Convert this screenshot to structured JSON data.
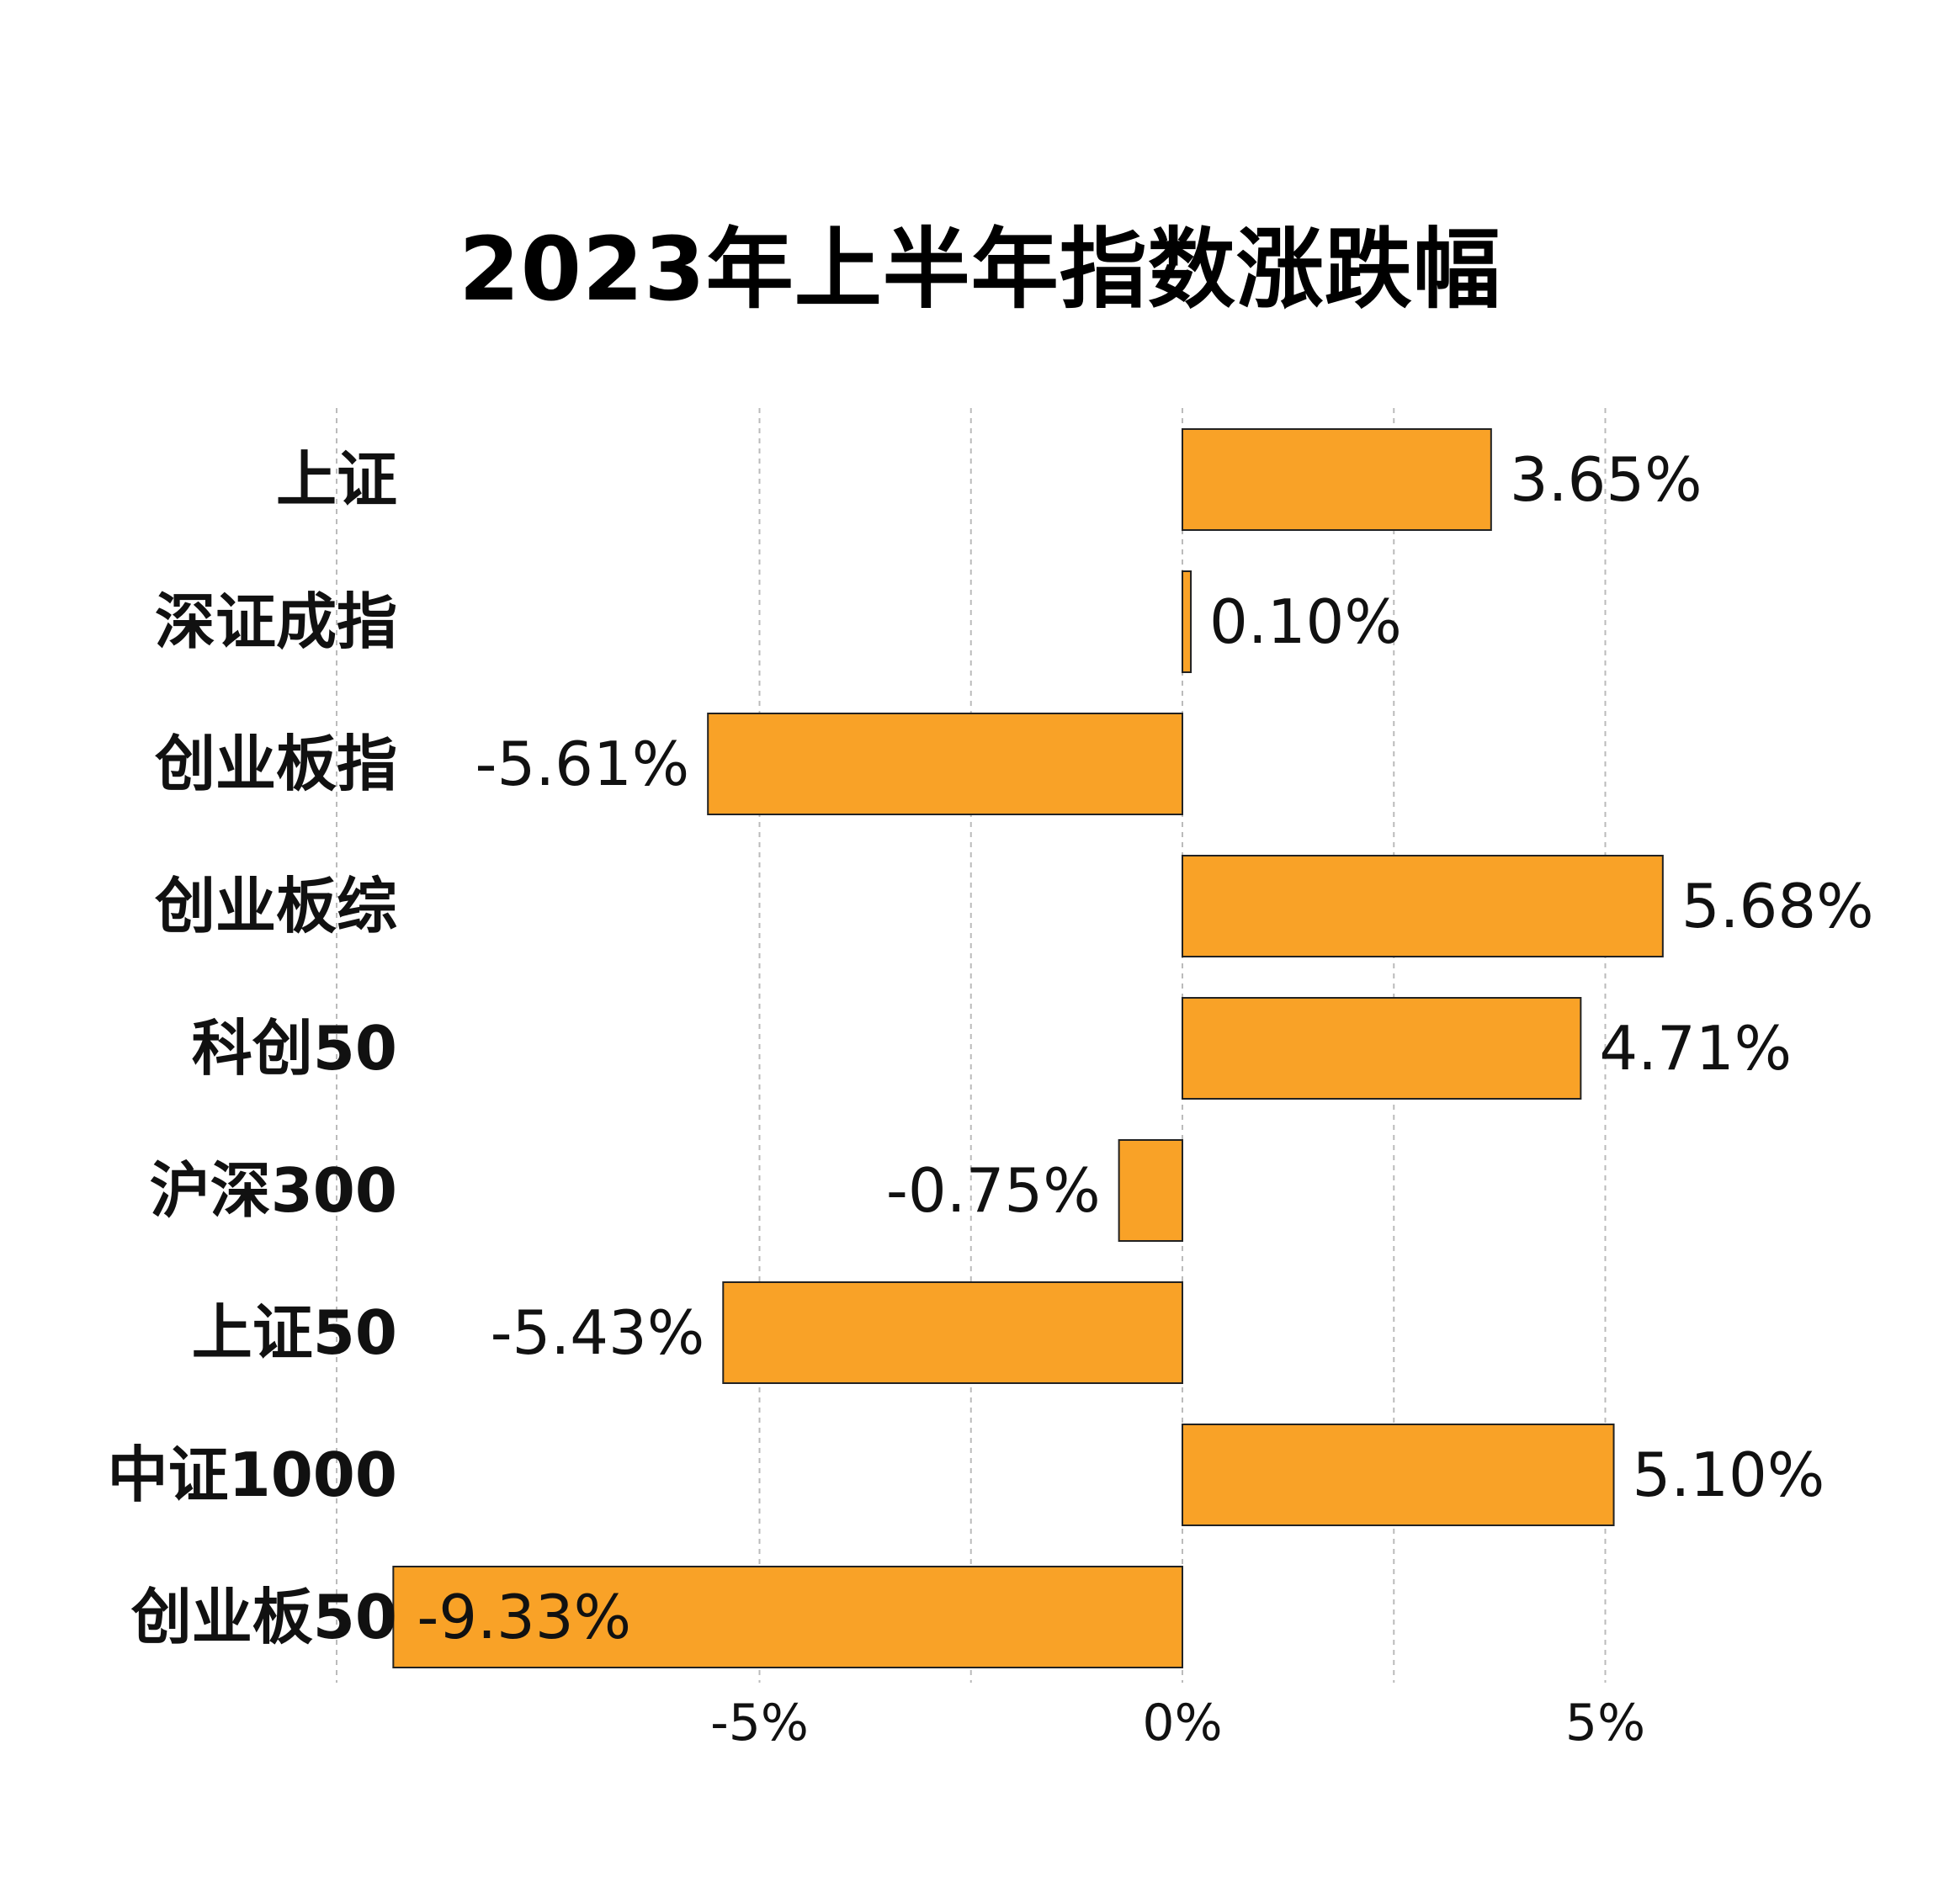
{
  "chart_data": {
    "type": "bar",
    "orientation": "horizontal",
    "title": "2023年上半年指数涨跌幅",
    "categories": [
      "上证",
      "深证成指",
      "创业板指",
      "创业板综",
      "科创50",
      "沪深300",
      "上证50",
      "中证1000",
      "创业板50"
    ],
    "values": [
      3.65,
      0.1,
      -5.61,
      5.68,
      4.71,
      -0.75,
      -5.43,
      5.1,
      -9.33
    ],
    "value_labels": [
      "3.65%",
      "0.10%",
      "-5.61%",
      "5.68%",
      "4.71%",
      "-0.75%",
      "-5.43%",
      "5.10%",
      "-9.33%"
    ],
    "xlim": [
      -10,
      8.5
    ],
    "xticks": [
      -5,
      0,
      5
    ],
    "xtick_labels": [
      "-5%",
      "0%",
      "5%"
    ],
    "gridlines_at": [
      -10,
      -5,
      -2.5,
      0,
      2.5,
      5
    ],
    "grid": true,
    "grid_style": "dashed vertical",
    "bar_color": "#F9A227",
    "bar_edge_color": "#222222",
    "xlabel": "",
    "ylabel": ""
  }
}
